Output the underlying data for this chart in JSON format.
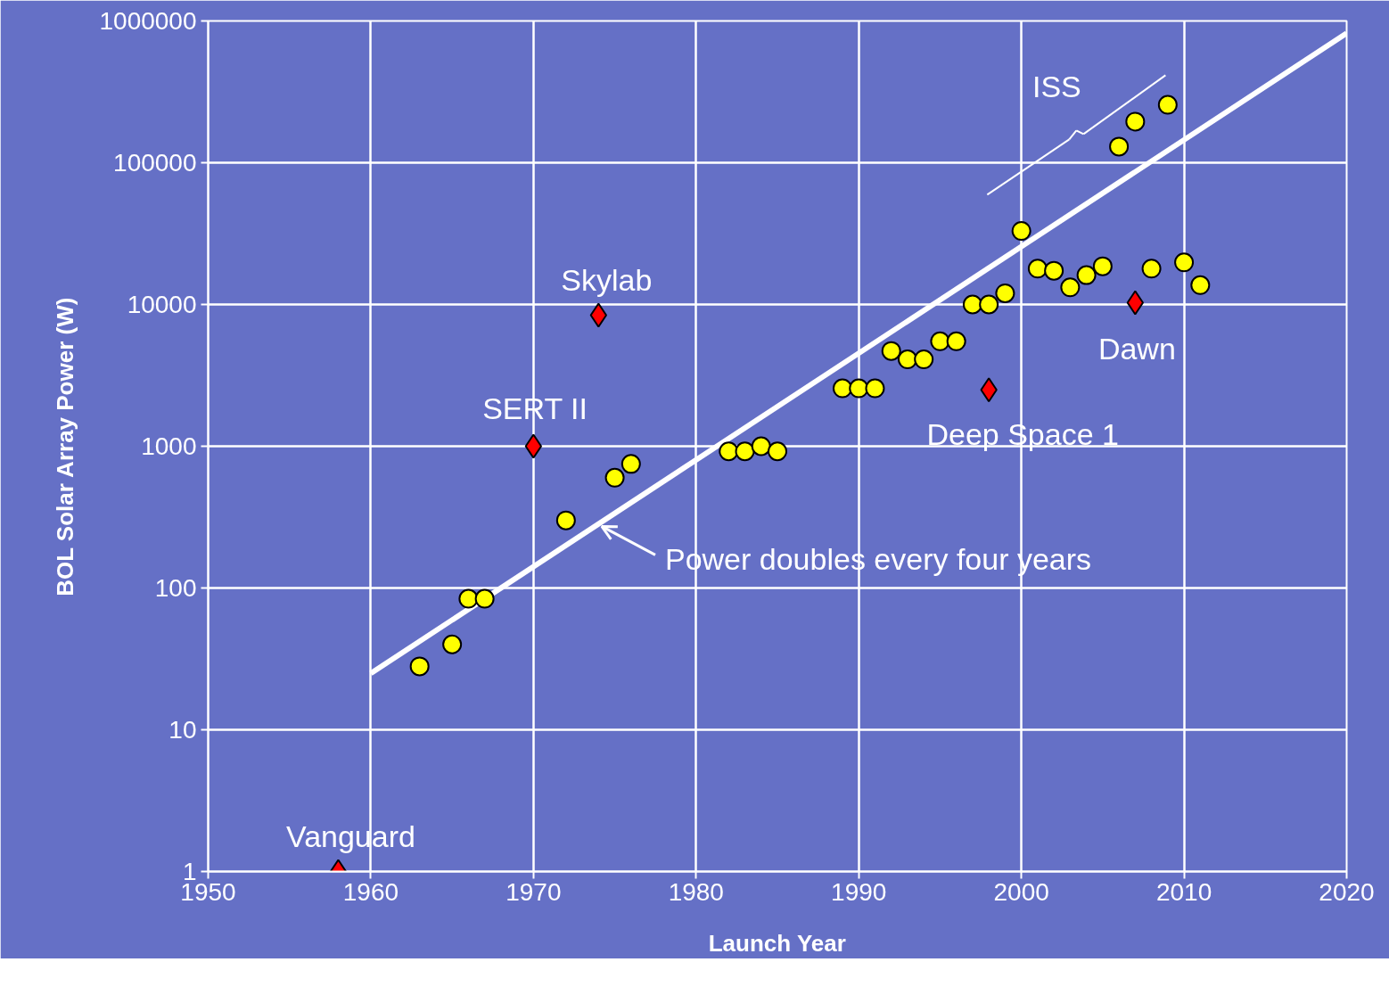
{
  "chart_data": {
    "type": "scatter",
    "xlabel": "Launch Year",
    "ylabel": "BOL Solar Array Power (W)",
    "log": "y",
    "grid": true,
    "xlim": [
      1950,
      2020
    ],
    "xticks": [
      1950,
      1960,
      1970,
      1980,
      1990,
      2000,
      2010,
      2020
    ],
    "ylim": [
      1,
      1000000
    ],
    "yticks": [
      1,
      10,
      100,
      1000,
      10000,
      100000,
      1000000
    ],
    "series": [
      {
        "marker": "circle",
        "color": "#ffff00",
        "x": [
          1963,
          1965,
          1966,
          1967,
          1972,
          1975,
          1976,
          1982,
          1983,
          1984,
          1985,
          1989,
          1990,
          1991,
          1992,
          1993,
          1994,
          1995,
          1996,
          1997,
          1998,
          1999,
          2000,
          2001,
          2002,
          2003,
          2004,
          2005,
          2006,
          2007,
          2008,
          2009,
          2010,
          2011
        ],
        "values": [
          28,
          40,
          84,
          84,
          300,
          600,
          750,
          920,
          920,
          1000,
          920,
          2560,
          2560,
          2560,
          4700,
          4100,
          4100,
          5500,
          5500,
          10000,
          10000,
          12000,
          33000,
          17900,
          17300,
          13200,
          16100,
          18600,
          130000,
          195000,
          17900,
          256000,
          19800,
          13700
        ]
      },
      {
        "marker": "diamond",
        "color": "#ff0000",
        "x": [
          1958,
          1970,
          1974,
          1998,
          2007
        ],
        "values": [
          1,
          1000,
          8400,
          2500,
          10300
        ]
      },
      {
        "type": "line",
        "color": "#ffffff",
        "x": [
          1960,
          2020
        ],
        "values": [
          25,
          820000
        ]
      }
    ],
    "annotations": [
      {
        "text": "Vanguard",
        "x": 1958,
        "y": 1
      },
      {
        "text": "SERT II",
        "x": 1970,
        "y": 1000
      },
      {
        "text": "Skylab",
        "x": 1974,
        "y": 8400
      },
      {
        "text": "Deep Space 1",
        "x": 1998,
        "y": 2500
      },
      {
        "text": "Dawn",
        "x": 2007,
        "y": 10300
      },
      {
        "text": "ISS",
        "x": 2007,
        "y": 195000
      },
      {
        "text": "Power doubles every four years",
        "x": 1974.2,
        "y": 272
      }
    ]
  }
}
